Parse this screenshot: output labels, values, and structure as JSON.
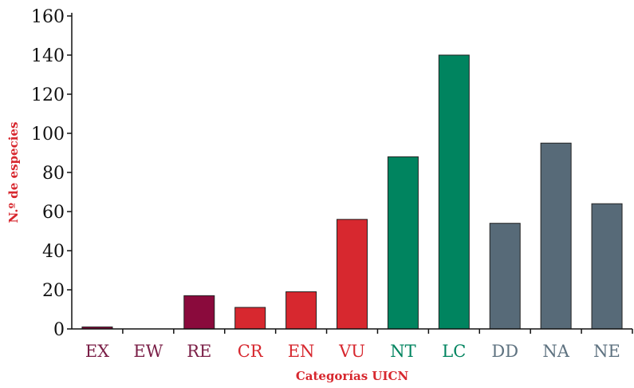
{
  "chart_data": {
    "type": "bar",
    "categories": [
      "EX",
      "EW",
      "RE",
      "CR",
      "EN",
      "VU",
      "NT",
      "LC",
      "DD",
      "NA",
      "NE"
    ],
    "values": [
      1,
      0,
      17,
      11,
      19,
      56,
      88,
      140,
      54,
      95,
      64
    ],
    "colors": [
      "#8a0a3c",
      "#8a0a3c",
      "#8a0a3c",
      "#d7282f",
      "#d7282f",
      "#d7282f",
      "#00845f",
      "#00845f",
      "#576a78",
      "#576a78",
      "#576a78"
    ],
    "label_colors": [
      "#7a1e46",
      "#7a1e46",
      "#7a1e46",
      "#d7282f",
      "#d7282f",
      "#d7282f",
      "#00845f",
      "#00845f",
      "#5e7280",
      "#5e7280",
      "#5e7280"
    ],
    "title": "",
    "xlabel": "Categorías UICN",
    "ylabel": "N.º de especies",
    "axis_title_color": "#d7282f",
    "ylim": [
      0,
      160
    ],
    "yticks": [
      "0",
      "20",
      "40",
      "60",
      "80",
      "100",
      "120",
      "140",
      "160"
    ],
    "grid": false
  }
}
